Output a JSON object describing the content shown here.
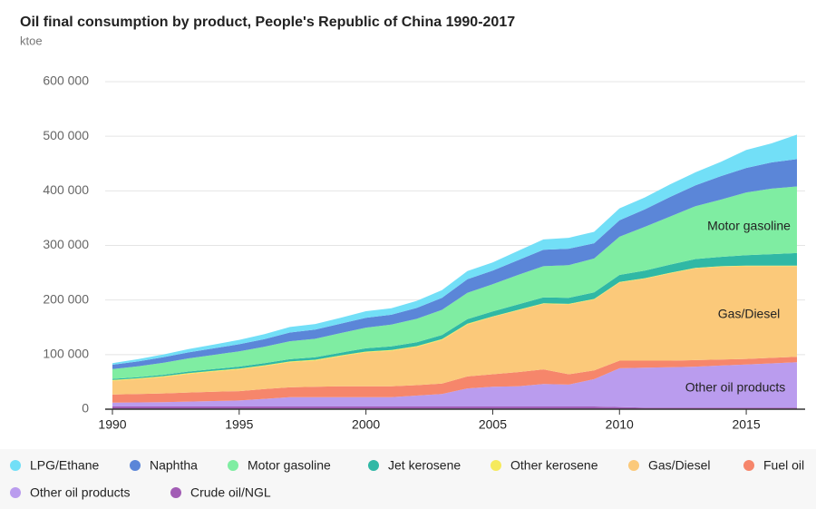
{
  "chart_data": {
    "type": "stacked_area",
    "title": "Oil final consumption by product, People's Republic of China 1990-2017",
    "subtitle": "ktoe",
    "x": [
      1990,
      1991,
      1992,
      1993,
      1994,
      1995,
      1996,
      1997,
      1998,
      1999,
      2000,
      2001,
      2002,
      2003,
      2004,
      2005,
      2006,
      2007,
      2008,
      2009,
      2010,
      2011,
      2012,
      2013,
      2014,
      2015,
      2016,
      2017
    ],
    "xlim": [
      1990,
      2017
    ],
    "xticks": [
      1990,
      1995,
      2000,
      2005,
      2010,
      2015
    ],
    "ylim": [
      0,
      600000
    ],
    "yticks": [
      0,
      {
        "value": 100000,
        "label": "100 000"
      },
      {
        "value": 200000,
        "label": "200 000"
      },
      {
        "value": 300000,
        "label": "300 000"
      },
      {
        "value": 400000,
        "label": "400 000"
      },
      {
        "value": 500000,
        "label": "500 000"
      },
      {
        "value": 600000,
        "label": "600 000"
      }
    ],
    "grid": true,
    "legend": "bottom",
    "annotations": [
      "Motor gasoline",
      "Gas/Diesel",
      "Other oil products"
    ],
    "series": [
      {
        "name": "LPG/Ethane",
        "color": "#72dff7",
        "values": [
          3000,
          4000,
          5000,
          6000,
          7000,
          8000,
          9000,
          10000,
          10000,
          11000,
          12000,
          12000,
          13000,
          14000,
          15000,
          15000,
          17000,
          19000,
          20000,
          21000,
          22000,
          22000,
          23000,
          24000,
          26000,
          33000,
          35000,
          45000
        ]
      },
      {
        "name": "Naphtha",
        "color": "#5b86d8",
        "values": [
          8000,
          9000,
          10000,
          11000,
          12000,
          13000,
          14000,
          16000,
          17000,
          17000,
          18000,
          18000,
          20000,
          22000,
          25000,
          25000,
          27000,
          30000,
          30000,
          28000,
          30000,
          32000,
          36000,
          38000,
          43000,
          45000,
          48000,
          50000
        ]
      },
      {
        "name": "Motor gasoline",
        "color": "#7feda2",
        "values": [
          18000,
          20000,
          22000,
          24000,
          26000,
          28000,
          30000,
          33000,
          34000,
          36000,
          38000,
          40000,
          43000,
          46000,
          48000,
          50000,
          54000,
          57000,
          60000,
          62000,
          70000,
          80000,
          88000,
          97000,
          105000,
          115000,
          120000,
          122000
        ]
      },
      {
        "name": "Jet kerosene",
        "color": "#30b8a5",
        "values": [
          2000,
          2000,
          2500,
          3000,
          3000,
          3500,
          4000,
          4000,
          4500,
          5000,
          6000,
          6500,
          7000,
          7500,
          8500,
          9000,
          10000,
          11000,
          11000,
          12000,
          13000,
          14000,
          15000,
          16000,
          17000,
          19000,
          21000,
          23000
        ]
      },
      {
        "name": "Other kerosene",
        "color": "#f6ea5c",
        "values": [
          1500,
          1500,
          1500,
          1500,
          1500,
          1500,
          1500,
          1500,
          1500,
          1500,
          1500,
          1500,
          1500,
          1500,
          1500,
          1000,
          1000,
          1000,
          1000,
          1000,
          1000,
          1000,
          1000,
          1000,
          1000,
          1000,
          1000,
          1000
        ]
      },
      {
        "name": "Gas/Diesel",
        "color": "#fbc97a",
        "values": [
          25000,
          27000,
          30000,
          34000,
          37000,
          40000,
          42000,
          46000,
          48000,
          55000,
          62000,
          65000,
          70000,
          80000,
          95000,
          105000,
          113000,
          120000,
          128000,
          130000,
          143000,
          150000,
          160000,
          168000,
          170000,
          170000,
          168000,
          166000
        ]
      },
      {
        "name": "Fuel oil",
        "color": "#f6866b",
        "values": [
          15000,
          15500,
          16000,
          16500,
          17000,
          17000,
          18000,
          18000,
          19000,
          20000,
          20000,
          20000,
          19000,
          19000,
          22000,
          23000,
          26000,
          27000,
          19000,
          16000,
          14000,
          13000,
          12000,
          12000,
          11000,
          10000,
          10000,
          10000
        ]
      },
      {
        "name": "Other oil products",
        "color": "#ba9cee",
        "values": [
          7000,
          7500,
          8000,
          9000,
          10000,
          11000,
          14000,
          17000,
          17000,
          17000,
          17000,
          17000,
          20000,
          23000,
          33000,
          36000,
          37000,
          41000,
          40000,
          50000,
          71000,
          73000,
          74000,
          75000,
          77000,
          79000,
          81000,
          83000
        ]
      },
      {
        "name": "Crude oil/NGL",
        "color": "#a25db5",
        "values": [
          5000,
          5000,
          5000,
          5000,
          5000,
          5000,
          5000,
          5000,
          5000,
          5000,
          5000,
          5000,
          5000,
          5000,
          5000,
          5000,
          5000,
          5000,
          5000,
          5000,
          4000,
          3000,
          3000,
          3000,
          3000,
          3000,
          3000,
          3000
        ]
      }
    ]
  }
}
